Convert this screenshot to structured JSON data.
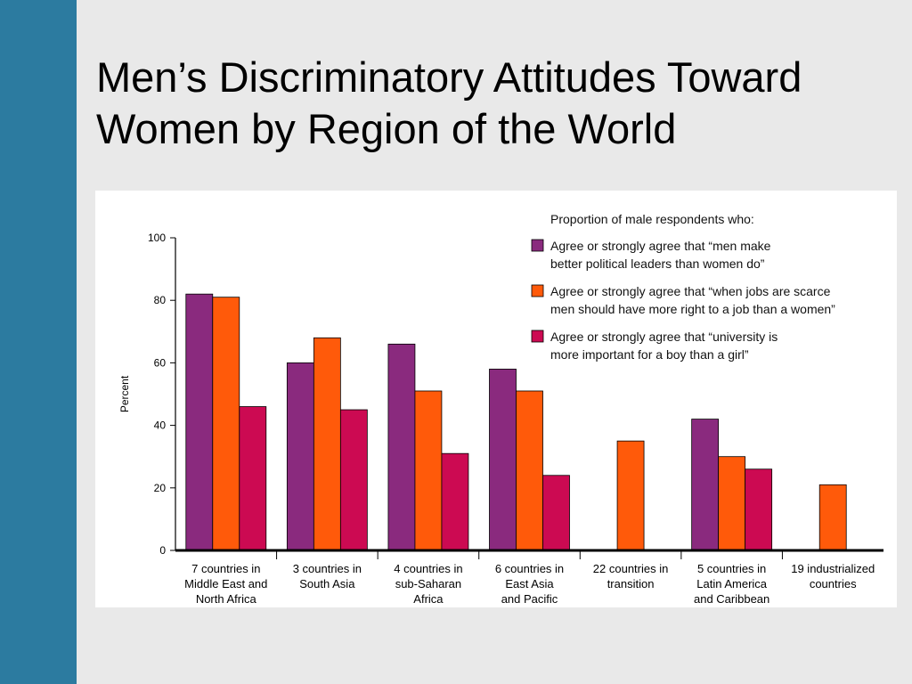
{
  "slide": {
    "title_line1": "Men’s Discriminatory Attitudes Toward",
    "title_line2": "Women by Region of the World"
  },
  "colors": {
    "sidebar": "#2c7ba0",
    "background": "#e9e9e9",
    "panel": "#ffffff"
  },
  "chart_data": {
    "type": "bar",
    "title": "",
    "xlabel": "",
    "ylabel": "Percent",
    "ylim": [
      0,
      100
    ],
    "yticks": [
      0,
      20,
      40,
      60,
      80,
      100
    ],
    "grid": false,
    "legend_title": "Proportion of male respondents who:",
    "legend_position": "top-right",
    "categories": [
      [
        "7 countries in",
        "Middle East and",
        "North Africa"
      ],
      [
        "3 countries in",
        "South Asia"
      ],
      [
        "4 countries in",
        "sub-Saharan",
        "Africa"
      ],
      [
        "6 countries in",
        "East Asia",
        "and Pacific"
      ],
      [
        "22 countries in",
        "transition"
      ],
      [
        "5 countries in",
        "Latin America",
        "and Caribbean"
      ],
      [
        "19 industrialized",
        "countries"
      ]
    ],
    "series": [
      {
        "name": [
          "Agree or strongly agree that “men make",
          "better political leaders than women do”"
        ],
        "color": "#8a2a7e",
        "values": [
          82,
          60,
          66,
          58,
          null,
          42,
          null
        ]
      },
      {
        "name": [
          "Agree or strongly agree that “when jobs are scarce",
          "men should have more right to a job than a women”"
        ],
        "color": "#ff5a0a",
        "values": [
          81,
          68,
          51,
          51,
          35,
          30,
          21
        ]
      },
      {
        "name": [
          "Agree or strongly agree that “university is",
          "more important for a boy than a girl”"
        ],
        "color": "#cc0a52",
        "values": [
          46,
          45,
          31,
          24,
          null,
          26,
          null
        ]
      }
    ]
  }
}
